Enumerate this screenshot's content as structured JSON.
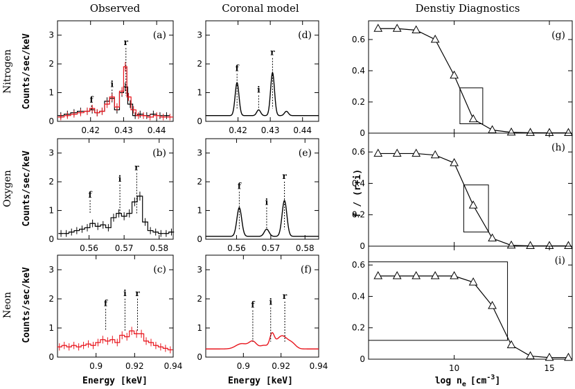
{
  "column_titles": [
    "Observed",
    "Coronal model",
    "Denstiy Diagnostics"
  ],
  "row_labels": [
    "Nitrogen",
    "Oxygen",
    "Neon"
  ],
  "ylabel_counts": "Counts/sec/keV",
  "xlabel_energy": "Energy [keV]",
  "ylabel_ratio": "f / (r+i)",
  "xlabel_density": "log n",
  "xlabel_density_sub": "e",
  "xlabel_density_unit": "[cm",
  "xlabel_density_exp": "-3",
  "xlabel_density_close": "]",
  "colors": {
    "axis": "#000000",
    "observed_black": "#000000",
    "observed_red": "#e8141c",
    "model_red": "#e8141c"
  },
  "chart_data": [
    {
      "id": "a",
      "type": "line",
      "panel_label": "(a)",
      "row": "Nitrogen",
      "column": "Observed",
      "xlim": [
        0.41,
        0.445
      ],
      "ylim": [
        0,
        3.5
      ],
      "xticks": [
        0.42,
        0.43,
        0.44
      ],
      "xtick_labels": [
        "0.42",
        "0.43",
        "0.44"
      ],
      "yticks": [
        0,
        1,
        2,
        3
      ],
      "ytick_labels": [
        "0",
        "1",
        "2",
        "3"
      ],
      "lines": [
        {
          "name": "f",
          "x": 0.4203,
          "y": 0.65
        },
        {
          "name": "i",
          "x": 0.4265,
          "y": 1.2
        },
        {
          "name": "r",
          "x": 0.4307,
          "y": 2.65
        }
      ],
      "series": [
        {
          "name": "observed (black)",
          "color": "#000000",
          "style": "histogram",
          "x": [
            0.411,
            0.413,
            0.415,
            0.417,
            0.419,
            0.4205,
            0.422,
            0.4235,
            0.425,
            0.4265,
            0.428,
            0.4295,
            0.4305,
            0.432,
            0.4335,
            0.435,
            0.437,
            0.439,
            0.441,
            0.443
          ],
          "y": [
            0.2,
            0.25,
            0.3,
            0.35,
            0.35,
            0.4,
            0.3,
            0.35,
            0.7,
            0.8,
            0.4,
            1.0,
            1.2,
            0.6,
            0.2,
            0.25,
            0.2,
            0.25,
            0.2,
            0.2
          ]
        },
        {
          "name": "observed (red)",
          "color": "#e8141c",
          "style": "histogram",
          "x": [
            0.411,
            0.413,
            0.415,
            0.417,
            0.419,
            0.4205,
            0.422,
            0.4235,
            0.425,
            0.4265,
            0.428,
            0.4295,
            0.4305,
            0.4315,
            0.433,
            0.4345,
            0.436,
            0.438,
            0.44,
            0.442,
            0.444
          ],
          "y": [
            0.15,
            0.2,
            0.25,
            0.3,
            0.35,
            0.45,
            0.3,
            0.35,
            0.6,
            0.85,
            0.5,
            1.05,
            1.9,
            0.85,
            0.4,
            0.2,
            0.2,
            0.15,
            0.2,
            0.15,
            0.15
          ]
        }
      ]
    },
    {
      "id": "b",
      "type": "line",
      "panel_label": "(b)",
      "row": "Oxygen",
      "column": "Observed",
      "xlim": [
        0.551,
        0.584
      ],
      "ylim": [
        0,
        3.5
      ],
      "xticks": [
        0.56,
        0.57,
        0.58
      ],
      "xtick_labels": [
        "0.56",
        "0.57",
        "0.58"
      ],
      "yticks": [
        0,
        1,
        2,
        3
      ],
      "ytick_labels": [
        "0",
        "1",
        "2",
        "3"
      ],
      "lines": [
        {
          "name": "f",
          "x": 0.5603,
          "y": 1.45
        },
        {
          "name": "i",
          "x": 0.5688,
          "y": 2.0
        },
        {
          "name": "r",
          "x": 0.5736,
          "y": 2.4
        }
      ],
      "series": [
        {
          "name": "observed (black)",
          "color": "#000000",
          "style": "histogram",
          "x": [
            0.552,
            0.5535,
            0.555,
            0.5565,
            0.558,
            0.5595,
            0.561,
            0.5625,
            0.564,
            0.5655,
            0.567,
            0.5685,
            0.57,
            0.5715,
            0.573,
            0.5745,
            0.576,
            0.5775,
            0.579,
            0.5805,
            0.582,
            0.5835
          ],
          "y": [
            0.2,
            0.2,
            0.25,
            0.3,
            0.35,
            0.4,
            0.55,
            0.45,
            0.5,
            0.4,
            0.75,
            0.9,
            0.8,
            0.9,
            1.3,
            1.5,
            0.6,
            0.3,
            0.25,
            0.2,
            0.2,
            0.25
          ]
        }
      ]
    },
    {
      "id": "c",
      "type": "line",
      "panel_label": "(c)",
      "row": "Neon",
      "column": "Observed",
      "xlim": [
        0.88,
        0.94
      ],
      "ylim": [
        0,
        3.5
      ],
      "xticks": [
        0.9,
        0.92,
        0.94
      ],
      "xtick_labels": [
        "0.9",
        "0.92",
        "0.94"
      ],
      "yticks": [
        0,
        1,
        2,
        3
      ],
      "ytick_labels": [
        "0",
        "1",
        "2",
        "3"
      ],
      "lines": [
        {
          "name": "f",
          "x": 0.905,
          "y": 1.75
        },
        {
          "name": "i",
          "x": 0.915,
          "y": 2.1
        },
        {
          "name": "r",
          "x": 0.9215,
          "y": 2.1
        }
      ],
      "series": [
        {
          "name": "observed (red)",
          "color": "#e8141c",
          "style": "histogram",
          "x": [
            0.881,
            0.8835,
            0.886,
            0.8885,
            0.891,
            0.8935,
            0.896,
            0.8985,
            0.901,
            0.9035,
            0.906,
            0.9085,
            0.911,
            0.9135,
            0.916,
            0.9185,
            0.921,
            0.9235,
            0.926,
            0.9285,
            0.931,
            0.9335,
            0.936,
            0.9385
          ],
          "y": [
            0.35,
            0.4,
            0.35,
            0.4,
            0.35,
            0.4,
            0.45,
            0.4,
            0.5,
            0.6,
            0.55,
            0.6,
            0.5,
            0.75,
            0.7,
            0.9,
            0.8,
            0.8,
            0.55,
            0.5,
            0.4,
            0.35,
            0.3,
            0.25
          ]
        }
      ]
    },
    {
      "id": "d",
      "type": "line",
      "panel_label": "(d)",
      "row": "Nitrogen",
      "column": "Coronal model",
      "xlim": [
        0.41,
        0.445
      ],
      "ylim": [
        0,
        3.5
      ],
      "xticks": [
        0.42,
        0.43,
        0.44
      ],
      "xtick_labels": [
        "0.42",
        "0.43",
        "0.44"
      ],
      "yticks": [
        0,
        1,
        2,
        3
      ],
      "ytick_labels": [
        "0",
        "1",
        "2",
        "3"
      ],
      "lines": [
        {
          "name": "f",
          "x": 0.4197,
          "y": 1.75
        },
        {
          "name": "i",
          "x": 0.4264,
          "y": 1.0
        },
        {
          "name": "r",
          "x": 0.4307,
          "y": 2.3
        }
      ],
      "series": [
        {
          "name": "model",
          "color": "#000000",
          "style": "line",
          "baseline": 0.2,
          "peaks": [
            {
              "x": 0.4197,
              "h": 1.15,
              "w": 0.0006
            },
            {
              "x": 0.4264,
              "h": 0.2,
              "w": 0.0006
            },
            {
              "x": 0.4307,
              "h": 1.5,
              "w": 0.0006
            },
            {
              "x": 0.435,
              "h": 0.15,
              "w": 0.0006
            }
          ]
        }
      ]
    },
    {
      "id": "e",
      "type": "line",
      "panel_label": "(e)",
      "row": "Oxygen",
      "column": "Coronal model",
      "xlim": [
        0.551,
        0.584
      ],
      "ylim": [
        0,
        3.5
      ],
      "xticks": [
        0.56,
        0.57,
        0.58
      ],
      "xtick_labels": [
        "0.56",
        "0.57",
        "0.58"
      ],
      "yticks": [
        0,
        1,
        2,
        3
      ],
      "ytick_labels": [
        "0",
        "1",
        "2",
        "3"
      ],
      "lines": [
        {
          "name": "f",
          "x": 0.5608,
          "y": 1.75
        },
        {
          "name": "i",
          "x": 0.5688,
          "y": 1.2
        },
        {
          "name": "r",
          "x": 0.574,
          "y": 2.1
        }
      ],
      "series": [
        {
          "name": "model",
          "color": "#000000",
          "style": "line",
          "baseline": 0.1,
          "peaks": [
            {
              "x": 0.5608,
              "h": 1.0,
              "w": 0.0007
            },
            {
              "x": 0.5688,
              "h": 0.25,
              "w": 0.0007
            },
            {
              "x": 0.574,
              "h": 1.25,
              "w": 0.0007
            }
          ]
        }
      ]
    },
    {
      "id": "f",
      "type": "line",
      "panel_label": "(f)",
      "row": "Neon",
      "column": "Coronal model",
      "xlim": [
        0.88,
        0.94
      ],
      "ylim": [
        0,
        3.5
      ],
      "xticks": [
        0.9,
        0.92,
        0.94
      ],
      "xtick_labels": [
        "0.9",
        "0.92",
        "0.94"
      ],
      "yticks": [
        0,
        1,
        2,
        3
      ],
      "ytick_labels": [
        "0",
        "1",
        "2",
        "3"
      ],
      "lines": [
        {
          "name": "f",
          "x": 0.905,
          "y": 1.7
        },
        {
          "name": "i",
          "x": 0.9145,
          "y": 1.8
        },
        {
          "name": "r",
          "x": 0.922,
          "y": 2.0
        }
      ],
      "series": [
        {
          "name": "model",
          "color": "#e8141c",
          "style": "line",
          "baseline": 0.28,
          "peaks": [
            {
              "x": 0.899,
              "h": 0.18,
              "w": 0.003
            },
            {
              "x": 0.905,
              "h": 0.25,
              "w": 0.002
            },
            {
              "x": 0.911,
              "h": 0.12,
              "w": 0.002
            },
            {
              "x": 0.9152,
              "h": 0.45,
              "w": 0.0012
            },
            {
              "x": 0.9205,
              "h": 0.45,
              "w": 0.003
            },
            {
              "x": 0.926,
              "h": 0.15,
              "w": 0.002
            }
          ]
        }
      ]
    },
    {
      "id": "g",
      "type": "line",
      "panel_label": "(g)",
      "row": "Nitrogen",
      "column": "Denstiy Diagnostics",
      "xlim": [
        5.5,
        16.2
      ],
      "ylim": [
        0,
        0.72
      ],
      "xticks": [
        10,
        15
      ],
      "yticks": [
        0,
        0.2,
        0.4,
        0.6
      ],
      "ytick_labels": [
        "0",
        "0.2",
        "0.4",
        "0.6"
      ],
      "series": [
        {
          "name": "f/(r+i)",
          "x": [
            6,
            7,
            8,
            9,
            10,
            11,
            12,
            13,
            14,
            15,
            16
          ],
          "y": [
            0.67,
            0.67,
            0.66,
            0.6,
            0.37,
            0.09,
            0.02,
            0.005,
            0.003,
            0.002,
            0.002
          ]
        }
      ],
      "box": {
        "x": [
          10.3,
          11.5
        ],
        "y": [
          0.06,
          0.29
        ]
      }
    },
    {
      "id": "h",
      "type": "line",
      "panel_label": "(h)",
      "row": "Oxygen",
      "column": "Denstiy Diagnostics",
      "xlim": [
        5.5,
        16.2
      ],
      "ylim": [
        0,
        0.72
      ],
      "xticks": [
        10,
        15
      ],
      "yticks": [
        0,
        0.2,
        0.4,
        0.6
      ],
      "ytick_labels": [
        "0",
        "0.2",
        "0.4",
        "0.6"
      ],
      "series": [
        {
          "name": "f/(r+i)",
          "x": [
            6,
            7,
            8,
            9,
            10,
            11,
            12,
            13,
            14,
            15,
            16
          ],
          "y": [
            0.59,
            0.59,
            0.59,
            0.58,
            0.53,
            0.26,
            0.05,
            0.005,
            0.002,
            0.002,
            0.002
          ]
        }
      ],
      "box": {
        "x": [
          10.5,
          11.8
        ],
        "y": [
          0.09,
          0.39
        ]
      }
    },
    {
      "id": "i",
      "type": "line",
      "panel_label": "(i)",
      "row": "Neon",
      "column": "Denstiy Diagnostics",
      "xlim": [
        5.5,
        16.2
      ],
      "ylim": [
        0,
        0.72
      ],
      "xticks": [
        10,
        15
      ],
      "xtick_labels": [
        "10",
        "15"
      ],
      "yticks": [
        0,
        0.2,
        0.4,
        0.6
      ],
      "ytick_labels": [
        "0",
        "0.2",
        "0.4",
        "0.6"
      ],
      "series": [
        {
          "name": "f/(r+i)",
          "x": [
            6,
            7,
            8,
            9,
            10,
            11,
            12,
            13,
            14,
            15,
            16
          ],
          "y": [
            0.53,
            0.53,
            0.53,
            0.53,
            0.53,
            0.49,
            0.34,
            0.09,
            0.02,
            0.01,
            0.01
          ]
        }
      ],
      "box": {
        "x": [
          5.5,
          12.8
        ],
        "y": [
          0.12,
          0.62
        ]
      }
    }
  ]
}
